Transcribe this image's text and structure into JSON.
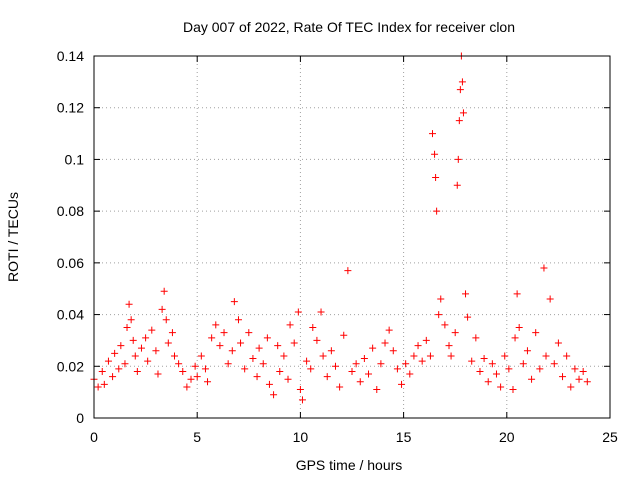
{
  "chart_data": {
    "type": "scatter",
    "title": "Day 007 of 2022, Rate Of TEC Index for receiver clon",
    "xlabel": "GPS time / hours",
    "ylabel": "ROTI / TECUs",
    "xlim": [
      0,
      25
    ],
    "ylim": [
      0,
      0.14
    ],
    "xticks": [
      0,
      5,
      10,
      15,
      20,
      25
    ],
    "yticks": [
      0,
      0.02,
      0.04,
      0.06,
      0.08,
      0.1,
      0.12,
      0.14
    ],
    "xtick_labels": [
      "0",
      "5",
      "10",
      "15",
      "20",
      "25"
    ],
    "ytick_labels": [
      "0",
      "0.02",
      "0.04",
      "0.06",
      "0.08",
      "0.1",
      "0.12",
      "0.14"
    ],
    "grid": true,
    "marker": "+",
    "series": [
      {
        "name": "ROTI",
        "color": "#ff0000",
        "points": [
          [
            0.0,
            0.015
          ],
          [
            0.2,
            0.012
          ],
          [
            0.4,
            0.018
          ],
          [
            0.5,
            0.013
          ],
          [
            0.7,
            0.022
          ],
          [
            0.9,
            0.016
          ],
          [
            1.0,
            0.025
          ],
          [
            1.2,
            0.019
          ],
          [
            1.3,
            0.028
          ],
          [
            1.5,
            0.021
          ],
          [
            1.6,
            0.035
          ],
          [
            1.7,
            0.044
          ],
          [
            1.8,
            0.038
          ],
          [
            1.9,
            0.03
          ],
          [
            2.0,
            0.024
          ],
          [
            2.1,
            0.018
          ],
          [
            2.3,
            0.027
          ],
          [
            2.5,
            0.031
          ],
          [
            2.6,
            0.022
          ],
          [
            2.8,
            0.034
          ],
          [
            3.0,
            0.026
          ],
          [
            3.1,
            0.017
          ],
          [
            3.3,
            0.042
          ],
          [
            3.4,
            0.049
          ],
          [
            3.5,
            0.038
          ],
          [
            3.6,
            0.029
          ],
          [
            3.8,
            0.033
          ],
          [
            3.9,
            0.024
          ],
          [
            4.1,
            0.021
          ],
          [
            4.3,
            0.018
          ],
          [
            4.5,
            0.012
          ],
          [
            4.7,
            0.015
          ],
          [
            4.9,
            0.02
          ],
          [
            5.0,
            0.016
          ],
          [
            5.2,
            0.024
          ],
          [
            5.4,
            0.019
          ],
          [
            5.5,
            0.014
          ],
          [
            5.7,
            0.031
          ],
          [
            5.9,
            0.036
          ],
          [
            6.1,
            0.028
          ],
          [
            6.3,
            0.033
          ],
          [
            6.5,
            0.021
          ],
          [
            6.7,
            0.026
          ],
          [
            6.8,
            0.045
          ],
          [
            7.0,
            0.038
          ],
          [
            7.1,
            0.029
          ],
          [
            7.3,
            0.019
          ],
          [
            7.5,
            0.033
          ],
          [
            7.7,
            0.023
          ],
          [
            7.9,
            0.016
          ],
          [
            8.0,
            0.027
          ],
          [
            8.2,
            0.021
          ],
          [
            8.4,
            0.031
          ],
          [
            8.5,
            0.013
          ],
          [
            8.7,
            0.009
          ],
          [
            8.9,
            0.028
          ],
          [
            9.0,
            0.018
          ],
          [
            9.2,
            0.024
          ],
          [
            9.4,
            0.015
          ],
          [
            9.5,
            0.036
          ],
          [
            9.7,
            0.029
          ],
          [
            9.9,
            0.041
          ],
          [
            10.0,
            0.011
          ],
          [
            10.1,
            0.007
          ],
          [
            10.3,
            0.022
          ],
          [
            10.5,
            0.019
          ],
          [
            10.6,
            0.035
          ],
          [
            10.8,
            0.03
          ],
          [
            11.0,
            0.041
          ],
          [
            11.1,
            0.024
          ],
          [
            11.3,
            0.016
          ],
          [
            11.5,
            0.026
          ],
          [
            11.7,
            0.02
          ],
          [
            11.9,
            0.012
          ],
          [
            12.1,
            0.032
          ],
          [
            12.3,
            0.057
          ],
          [
            12.5,
            0.018
          ],
          [
            12.7,
            0.021
          ],
          [
            12.9,
            0.014
          ],
          [
            13.1,
            0.023
          ],
          [
            13.3,
            0.017
          ],
          [
            13.5,
            0.027
          ],
          [
            13.7,
            0.011
          ],
          [
            13.9,
            0.021
          ],
          [
            14.1,
            0.029
          ],
          [
            14.3,
            0.034
          ],
          [
            14.5,
            0.026
          ],
          [
            14.7,
            0.019
          ],
          [
            14.9,
            0.013
          ],
          [
            15.1,
            0.021
          ],
          [
            15.3,
            0.017
          ],
          [
            15.5,
            0.024
          ],
          [
            15.7,
            0.028
          ],
          [
            15.9,
            0.022
          ],
          [
            16.1,
            0.03
          ],
          [
            16.3,
            0.024
          ],
          [
            16.4,
            0.11
          ],
          [
            16.5,
            0.102
          ],
          [
            16.55,
            0.093
          ],
          [
            16.6,
            0.08
          ],
          [
            16.7,
            0.04
          ],
          [
            16.8,
            0.046
          ],
          [
            17.0,
            0.036
          ],
          [
            17.2,
            0.028
          ],
          [
            17.3,
            0.024
          ],
          [
            17.5,
            0.033
          ],
          [
            17.6,
            0.09
          ],
          [
            17.65,
            0.1
          ],
          [
            17.7,
            0.115
          ],
          [
            17.75,
            0.127
          ],
          [
            17.8,
            0.14
          ],
          [
            17.85,
            0.13
          ],
          [
            17.9,
            0.118
          ],
          [
            18.0,
            0.048
          ],
          [
            18.1,
            0.039
          ],
          [
            18.3,
            0.022
          ],
          [
            18.5,
            0.031
          ],
          [
            18.7,
            0.018
          ],
          [
            18.9,
            0.023
          ],
          [
            19.1,
            0.014
          ],
          [
            19.3,
            0.021
          ],
          [
            19.5,
            0.017
          ],
          [
            19.7,
            0.012
          ],
          [
            19.9,
            0.024
          ],
          [
            20.1,
            0.019
          ],
          [
            20.3,
            0.011
          ],
          [
            20.4,
            0.031
          ],
          [
            20.5,
            0.048
          ],
          [
            20.6,
            0.035
          ],
          [
            20.8,
            0.021
          ],
          [
            21.0,
            0.026
          ],
          [
            21.2,
            0.015
          ],
          [
            21.4,
            0.033
          ],
          [
            21.6,
            0.019
          ],
          [
            21.8,
            0.058
          ],
          [
            21.9,
            0.024
          ],
          [
            22.1,
            0.046
          ],
          [
            22.3,
            0.021
          ],
          [
            22.5,
            0.029
          ],
          [
            22.7,
            0.016
          ],
          [
            22.9,
            0.024
          ],
          [
            23.1,
            0.012
          ],
          [
            23.3,
            0.019
          ],
          [
            23.5,
            0.015
          ],
          [
            23.7,
            0.018
          ],
          [
            23.9,
            0.014
          ]
        ]
      }
    ]
  }
}
